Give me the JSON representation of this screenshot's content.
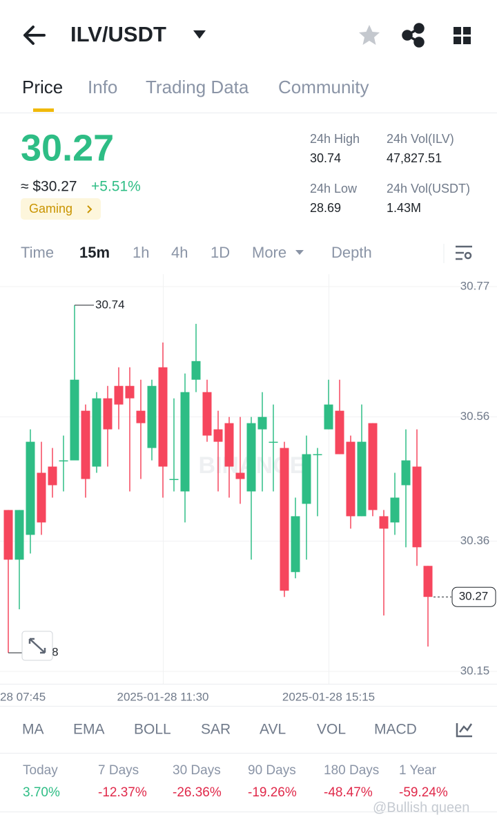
{
  "header": {
    "pair": "ILV/USDT"
  },
  "tabs": [
    "Price",
    "Info",
    "Trading Data",
    "Community"
  ],
  "ticker": {
    "price": "30.27",
    "fiat": "≈ $30.27",
    "change": "+5.51%",
    "tag": "Gaming"
  },
  "stats": [
    {
      "label": "24h High",
      "value": "30.74"
    },
    {
      "label": "24h Vol(ILV)",
      "value": "47,827.51"
    },
    {
      "label": "24h Low",
      "value": "28.69"
    },
    {
      "label": "24h Vol(USDT)",
      "value": "1.43M"
    }
  ],
  "intervals": [
    "Time",
    "15m",
    "1h",
    "4h",
    "1D",
    "More",
    "Depth"
  ],
  "chart_data": {
    "type": "candlestick",
    "watermark": "BINANCE",
    "x_labels": [
      "28 07:45",
      "2025-01-28 11:30",
      "2025-01-28 15:15"
    ],
    "ylim": [
      30.13,
      30.79
    ],
    "yticks": [
      30.15,
      30.36,
      30.56,
      30.77
    ],
    "up_color": "#2ebd85",
    "down_color": "#f6465d",
    "candles": [
      {
        "open": 30.41,
        "high": 30.41,
        "low": 30.18,
        "close": 30.33
      },
      {
        "open": 30.33,
        "high": 30.41,
        "low": 30.25,
        "close": 30.41
      },
      {
        "open": 30.37,
        "high": 30.54,
        "low": 30.34,
        "close": 30.52
      },
      {
        "open": 30.47,
        "high": 30.52,
        "low": 30.37,
        "close": 30.39
      },
      {
        "open": 30.48,
        "high": 30.51,
        "low": 30.43,
        "close": 30.45
      },
      {
        "open": 30.49,
        "high": 30.53,
        "low": 30.44,
        "close": 30.49
      },
      {
        "open": 30.49,
        "high": 30.74,
        "low": 30.49,
        "close": 30.62
      },
      {
        "open": 30.57,
        "high": 30.58,
        "low": 30.43,
        "close": 30.46
      },
      {
        "open": 30.48,
        "high": 30.6,
        "low": 30.47,
        "close": 30.59
      },
      {
        "open": 30.59,
        "high": 30.61,
        "low": 30.48,
        "close": 30.54
      },
      {
        "open": 30.61,
        "high": 30.64,
        "low": 30.54,
        "close": 30.58
      },
      {
        "open": 30.61,
        "high": 30.64,
        "low": 30.44,
        "close": 30.59
      },
      {
        "open": 30.57,
        "high": 30.62,
        "low": 30.46,
        "close": 30.55
      },
      {
        "open": 30.51,
        "high": 30.62,
        "low": 30.49,
        "close": 30.61
      },
      {
        "open": 30.64,
        "high": 30.68,
        "low": 30.43,
        "close": 30.48
      },
      {
        "open": 30.46,
        "high": 30.59,
        "low": 30.44,
        "close": 30.46
      },
      {
        "open": 30.44,
        "high": 30.63,
        "low": 30.39,
        "close": 30.6
      },
      {
        "open": 30.62,
        "high": 30.71,
        "low": 30.6,
        "close": 30.65
      },
      {
        "open": 30.6,
        "high": 30.62,
        "low": 30.52,
        "close": 30.53
      },
      {
        "open": 30.54,
        "high": 30.57,
        "low": 30.44,
        "close": 30.52
      },
      {
        "open": 30.55,
        "high": 30.56,
        "low": 30.43,
        "close": 30.48
      },
      {
        "open": 30.47,
        "high": 30.56,
        "low": 30.42,
        "close": 30.46
      },
      {
        "open": 30.44,
        "high": 30.56,
        "low": 30.33,
        "close": 30.55
      },
      {
        "open": 30.54,
        "high": 30.6,
        "low": 30.44,
        "close": 30.56
      },
      {
        "open": 30.52,
        "high": 30.58,
        "low": 30.44,
        "close": 30.52
      },
      {
        "open": 30.51,
        "high": 30.52,
        "low": 30.27,
        "close": 30.28
      },
      {
        "open": 30.31,
        "high": 30.43,
        "low": 30.3,
        "close": 30.4
      },
      {
        "open": 30.42,
        "high": 30.53,
        "low": 30.33,
        "close": 30.5
      },
      {
        "open": 30.5,
        "high": 30.51,
        "low": 30.4,
        "close": 30.5
      },
      {
        "open": 30.54,
        "high": 30.62,
        "low": 30.54,
        "close": 30.58
      },
      {
        "open": 30.57,
        "high": 30.62,
        "low": 30.5,
        "close": 30.5
      },
      {
        "open": 30.52,
        "high": 30.53,
        "low": 30.38,
        "close": 30.4
      },
      {
        "open": 30.4,
        "high": 30.58,
        "low": 30.4,
        "close": 30.52
      },
      {
        "open": 30.55,
        "high": 30.55,
        "low": 30.4,
        "close": 30.41
      },
      {
        "open": 30.4,
        "high": 30.41,
        "low": 30.24,
        "close": 30.38
      },
      {
        "open": 30.39,
        "high": 30.47,
        "low": 30.37,
        "close": 30.43
      },
      {
        "open": 30.45,
        "high": 30.54,
        "low": 30.35,
        "close": 30.49
      },
      {
        "open": 30.48,
        "high": 30.54,
        "low": 30.32,
        "close": 30.35
      },
      {
        "open": 30.32,
        "high": 30.32,
        "low": 30.19,
        "close": 30.27
      }
    ]
  },
  "indicators": [
    "MA",
    "EMA",
    "BOLL",
    "SAR",
    "AVL",
    "VOL",
    "MACD"
  ],
  "performance": [
    {
      "label": "Today",
      "value": "3.70%"
    },
    {
      "label": "7 Days",
      "value": "-12.37%"
    },
    {
      "label": "30 Days",
      "value": "-26.36%"
    },
    {
      "label": "90 Days",
      "value": "-19.26%"
    },
    {
      "label": "180 Days",
      "value": "-48.47%"
    },
    {
      "label": "1 Year",
      "value": "-59.24%"
    }
  ],
  "watermark": "@Bullish queen"
}
